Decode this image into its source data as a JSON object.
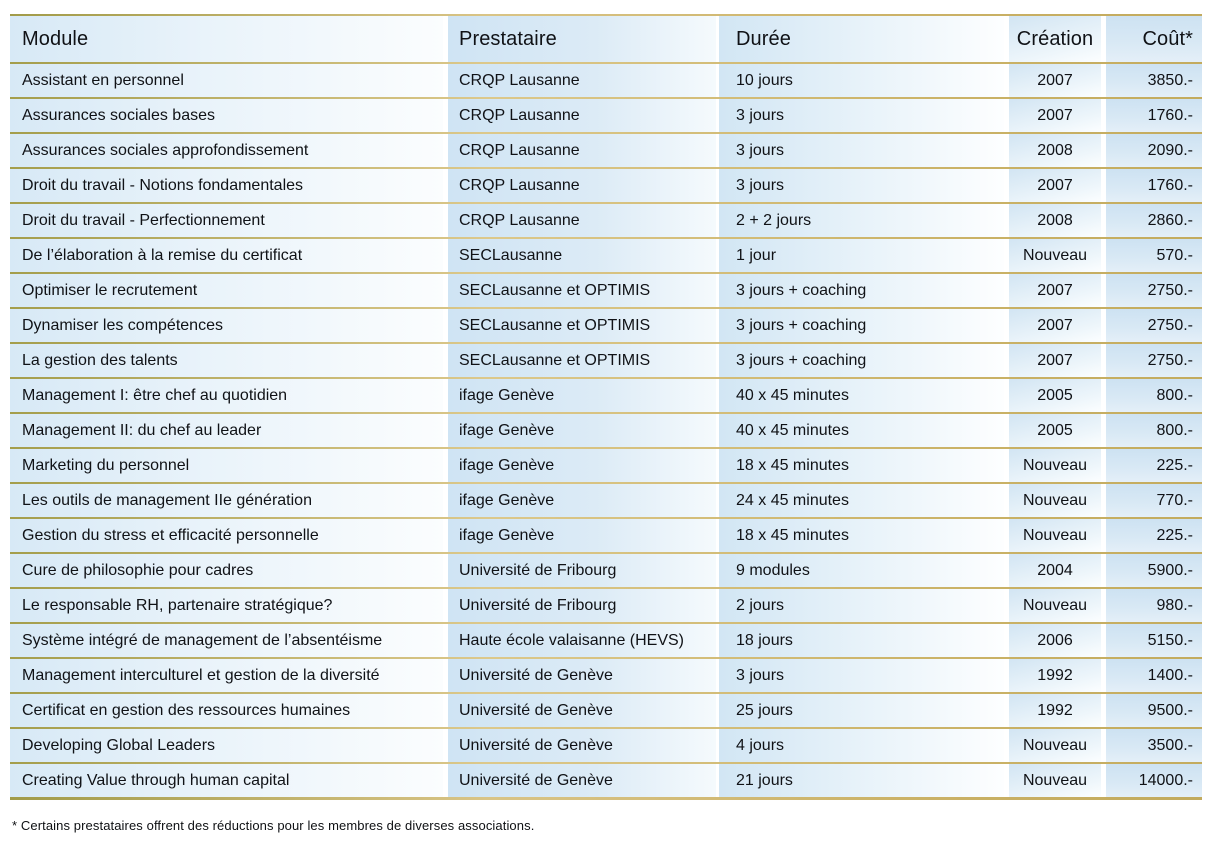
{
  "table": {
    "headers": {
      "module": "Module",
      "prestataire": "Prestataire",
      "duree": "Durée",
      "creation": "Création",
      "cout": "Coût*"
    },
    "rows": [
      {
        "module": "Assistant en personnel",
        "prestataire": "CRQP Lausanne",
        "duree": "10 jours",
        "creation": "2007",
        "cout": "3850.-"
      },
      {
        "module": "Assurances sociales bases",
        "prestataire": "CRQP Lausanne",
        "duree": "3 jours",
        "creation": "2007",
        "cout": "1760.-"
      },
      {
        "module": "Assurances sociales approfondissement",
        "prestataire": "CRQP Lausanne",
        "duree": "3 jours",
        "creation": "2008",
        "cout": "2090.-"
      },
      {
        "module": "Droit du travail - Notions fondamentales",
        "prestataire": "CRQP Lausanne",
        "duree": "3 jours",
        "creation": "2007",
        "cout": "1760.-"
      },
      {
        "module": "Droit du travail - Perfectionnement",
        "prestataire": "CRQP Lausanne",
        "duree": "2 + 2  jours",
        "creation": "2008",
        "cout": "2860.-"
      },
      {
        "module": "De l’élaboration à la remise du certificat",
        "prestataire": "SECLausanne",
        "duree": "1 jour",
        "creation": "Nouveau",
        "cout": "570.-"
      },
      {
        "module": "Optimiser le recrutement",
        "prestataire": "SECLausanne et OPTIMIS",
        "duree": "3 jours + coaching",
        "creation": "2007",
        "cout": "2750.-"
      },
      {
        "module": "Dynamiser les compétences",
        "prestataire": "SECLausanne et OPTIMIS",
        "duree": "3 jours + coaching",
        "creation": "2007",
        "cout": "2750.-"
      },
      {
        "module": "La gestion des talents",
        "prestataire": "SECLausanne et OPTIMIS",
        "duree": "3 jours + coaching",
        "creation": "2007",
        "cout": "2750.-"
      },
      {
        "module": "Management I: être chef au quotidien",
        "prestataire": "ifage Genève",
        "duree": "40 x 45 minutes",
        "creation": "2005",
        "cout": "800.-"
      },
      {
        "module": "Management II: du chef au leader",
        "prestataire": "ifage Genève",
        "duree": "40 x 45 minutes",
        "creation": "2005",
        "cout": "800.-"
      },
      {
        "module": "Marketing du personnel",
        "prestataire": "ifage Genève",
        "duree": "18 x 45 minutes",
        "creation": "Nouveau",
        "cout": "225.-"
      },
      {
        "module": "Les outils de management IIe génération",
        "prestataire": "ifage Genève",
        "duree": "24 x 45 minutes",
        "creation": "Nouveau",
        "cout": "770.-"
      },
      {
        "module": "Gestion du stress et efficacité personnelle",
        "prestataire": "ifage Genève",
        "duree": "18 x 45 minutes",
        "creation": "Nouveau",
        "cout": "225.-"
      },
      {
        "module": "Cure de philosophie pour cadres",
        "prestataire": "Université de Fribourg",
        "duree": "9 modules",
        "creation": "2004",
        "cout": "5900.-"
      },
      {
        "module": "Le responsable RH, partenaire stratégique?",
        "prestataire": "Université de Fribourg",
        "duree": "2 jours",
        "creation": "Nouveau",
        "cout": "980.-"
      },
      {
        "module": "Système intégré de management de l’absentéisme",
        "prestataire": "Haute école valaisanne (HEVS)",
        "duree": "18 jours",
        "creation": "2006",
        "cout": "5150.-"
      },
      {
        "module": "Management interculturel et gestion de la diversité",
        "prestataire": "Université de Genève",
        "duree": "3 jours",
        "creation": "1992",
        "cout": "1400.-"
      },
      {
        "module": "Certificat en gestion des ressources humaines",
        "prestataire": "Université de Genève",
        "duree": "25 jours",
        "creation": "1992",
        "cout": "9500.-"
      },
      {
        "module": "Developing Global Leaders",
        "prestataire": "Université de Genève",
        "duree": "4 jours",
        "creation": "Nouveau",
        "cout": "3500.-"
      },
      {
        "module": "Creating Value through human capital",
        "prestataire": "Université de Genève",
        "duree": "21 jours",
        "creation": "Nouveau",
        "cout": "14000.-"
      }
    ]
  },
  "footnote": "* Certains prestataires offrent des réductions pour les membres de diverses associations.",
  "colors": {
    "accent_gold": "#c3ab5e",
    "light_blue": "#cfe4f4",
    "text": "#101216",
    "background": "#ffffff"
  }
}
